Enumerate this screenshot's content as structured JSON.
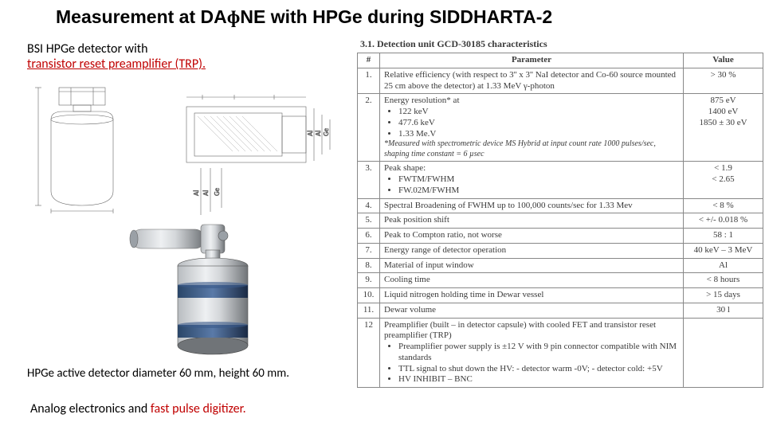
{
  "title_pre": "Measurement at DA",
  "title_phi": "ɸ",
  "title_post": "NE with HPGe during SIDDHARTA-2",
  "subtitle_line1": "BSI HPGe detector with",
  "subtitle_line2": "transistor reset preamplifier (TRP).",
  "footer1": "HPGe active detector diameter 60 mm, height 60 mm.",
  "footer2a": "Analog electronics and ",
  "footer2b": "fast pulse digitizer.",
  "table": {
    "caption": "3.1.   Detection unit GCD-30185 characteristics",
    "headers": [
      "#",
      "Parameter",
      "Value"
    ],
    "rows": [
      {
        "n": "1.",
        "p": "Relative efficiency (with respect to 3'' x 3'' NaI detector and Co-60 source mounted 25 cm above the detector) at 1.33 MeV γ-photon",
        "v": "> 30 %"
      },
      {
        "n": "2.",
        "p_lead": "Energy resolution* at",
        "p_items": [
          "122 keV",
          "477.6 keV",
          "1.33 Me.V"
        ],
        "p_note": "*Measured with spectrometric device MS Hybrid at input count rate 1000 pulses/sec, shaping time constant = 6 µsec",
        "v": "875 eV<br>1400 eV<br>1850 ± 30 eV"
      },
      {
        "n": "3.",
        "p_lead": "Peak shape:",
        "p_items": [
          "FWTM/FWHM",
          "FW.02M/FWHM"
        ],
        "v": "< 1.9<br>< 2.65"
      },
      {
        "n": "4.",
        "p": "Spectral Broadening of FWHM up to 100,000 counts/sec for 1.33 Mev",
        "v": "< 8 %"
      },
      {
        "n": "5.",
        "p": "Peak position shift",
        "v": "< +/- 0.018 %"
      },
      {
        "n": "6.",
        "p": "Peak to Compton ratio, not worse",
        "v": "58 : 1"
      },
      {
        "n": "7.",
        "p": "Energy range of detector operation",
        "v": "40 keV – 3 MeV"
      },
      {
        "n": "8.",
        "p": "Material of input window",
        "v": "Al"
      },
      {
        "n": "9.",
        "p": "Cooling time",
        "v": "< 8 hours"
      },
      {
        "n": "10.",
        "p": "Liquid nitrogen holding time in Dewar vessel",
        "v": "> 15 days"
      },
      {
        "n": "11.",
        "p": "Dewar volume",
        "v": "30 l"
      },
      {
        "n": "12",
        "p_lead": "Preamplifier (built – in detector capsule) with cooled FET and transistor reset preamplifier (TRP)",
        "p_items": [
          "Preamplifier power supply is ±12 V with 9 pin connector compatible with NIM standards",
          "TTL signal to shut down the HV: - detector warm -0V; - detector cold: +5V",
          "HV INHIBIT – BNC"
        ],
        "v": ""
      }
    ]
  },
  "colors": {
    "accent": "#c00000",
    "text": "#000000",
    "tableText": "#3a3a3a",
    "tableBorder": "#888888",
    "dewarBand": "#3a5a8a",
    "dewarBody": "#8a8e92"
  }
}
